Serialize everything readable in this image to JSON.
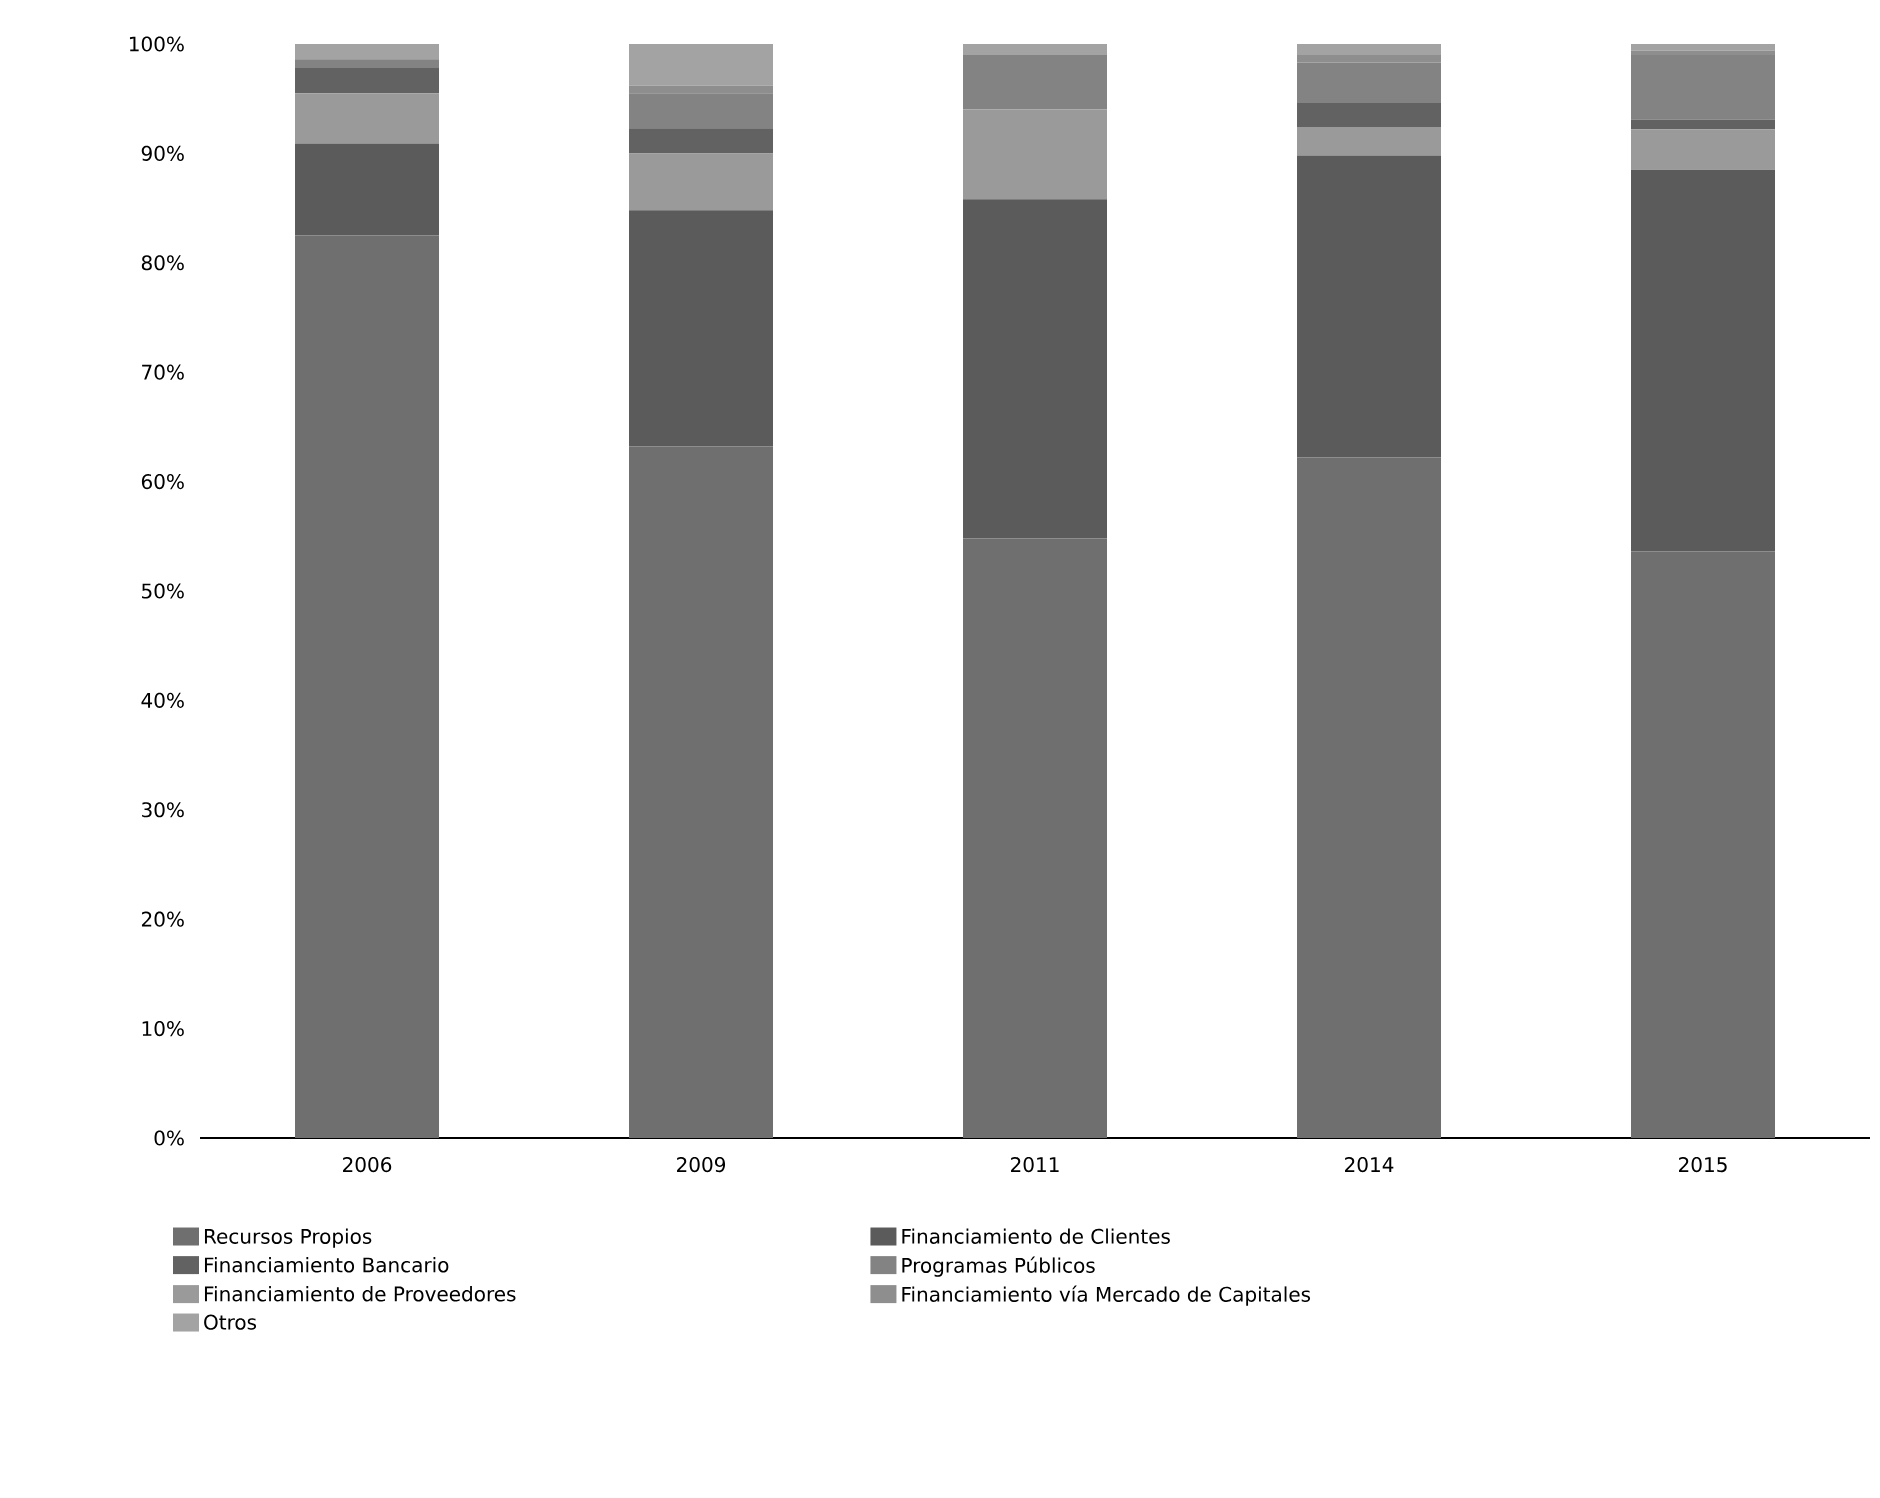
{
  "chart_data": {
    "type": "bar",
    "stacked": true,
    "categories": [
      "2006",
      "2009",
      "2011",
      "2014",
      "2015"
    ],
    "series": [
      {
        "name": "Recursos Propios",
        "color": "#6f6f6f",
        "values": [
          82.5,
          63.2,
          54.8,
          62.2,
          53.6
        ]
      },
      {
        "name": "Financiamiento de Clientes",
        "color": "#5b5b5b",
        "values": [
          8.4,
          21.6,
          31.0,
          27.6,
          34.9
        ]
      },
      {
        "name": "Financiamiento de Proveedores",
        "color": "#9a9a9a",
        "values": [
          4.6,
          5.2,
          8.2,
          2.6,
          3.7
        ]
      },
      {
        "name": "Financiamiento Bancario",
        "color": "#626262",
        "values": [
          2.3,
          2.3,
          0,
          2.2,
          0.9
        ]
      },
      {
        "name": "Programas Públicos",
        "color": "#838383",
        "values": [
          0.8,
          3.2,
          5.0,
          3.7,
          5.9
        ]
      },
      {
        "name": "Financiamiento vía Mercado de Capitales",
        "color": "#8e8e8e",
        "values": [
          0,
          0.7,
          0,
          0.7,
          0.4
        ]
      },
      {
        "name": "Otros",
        "color": "#a3a3a3",
        "values": [
          1.4,
          3.8,
          1.0,
          1.0,
          0.6
        ]
      }
    ],
    "ylim": [
      0,
      100
    ],
    "yticks": [
      {
        "value": 0,
        "label": "0%"
      },
      {
        "value": 10,
        "label": "10%"
      },
      {
        "value": 20,
        "label": "20%"
      },
      {
        "value": 30,
        "label": "30%"
      },
      {
        "value": 40,
        "label": "40%"
      },
      {
        "value": 50,
        "label": "50%"
      },
      {
        "value": 60,
        "label": "60%"
      },
      {
        "value": 70,
        "label": "70%"
      },
      {
        "value": 80,
        "label": "80%"
      },
      {
        "value": 90,
        "label": "90%"
      },
      {
        "value": 100,
        "label": "100%"
      }
    ],
    "legend": "bottom"
  }
}
